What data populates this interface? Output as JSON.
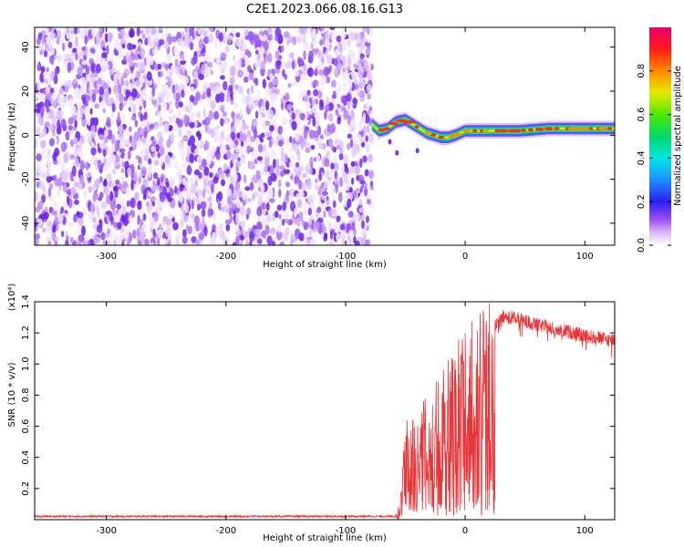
{
  "figure": {
    "title": "C2E1.2023.066.08.16.G13"
  },
  "chart_data": [
    {
      "type": "heatmap",
      "xlabel": "Height of straight line (km)",
      "ylabel": "Frequency (Hz)",
      "xlim": [
        -360,
        125
      ],
      "ylim": [
        -50,
        49
      ],
      "xticks": [
        -300,
        -200,
        -100,
        0,
        100
      ],
      "yticks": [
        -40,
        -20,
        0,
        20,
        40
      ],
      "noise_region_x": [
        -360,
        -78
      ],
      "signal_region_x": [
        -78,
        125
      ],
      "signal_center_freq_points": [
        {
          "x": -78,
          "y": 5
        },
        {
          "x": -72,
          "y": 2
        },
        {
          "x": -65,
          "y": 3
        },
        {
          "x": -58,
          "y": 6
        },
        {
          "x": -50,
          "y": 7
        },
        {
          "x": -44,
          "y": 5
        },
        {
          "x": -38,
          "y": 3
        },
        {
          "x": -32,
          "y": 1
        },
        {
          "x": -26,
          "y": 0
        },
        {
          "x": -20,
          "y": -1
        },
        {
          "x": -14,
          "y": -1
        },
        {
          "x": -8,
          "y": 0
        },
        {
          "x": 0,
          "y": 2
        },
        {
          "x": 10,
          "y": 2
        },
        {
          "x": 25,
          "y": 2
        },
        {
          "x": 45,
          "y": 2
        },
        {
          "x": 70,
          "y": 3
        },
        {
          "x": 90,
          "y": 3
        },
        {
          "x": 110,
          "y": 3
        },
        {
          "x": 125,
          "y": 3
        }
      ],
      "grid": false
    },
    {
      "type": "line",
      "xlabel": "Height of straight line (km)",
      "ylabel": "SNR (10 * v/v)",
      "y_multiplier": "(x10⁴)",
      "xlim": [
        -360,
        125
      ],
      "ylim": [
        0,
        1.4
      ],
      "xticks": [
        -300,
        -200,
        -100,
        0,
        100
      ],
      "yticks": [
        0.2,
        0.4,
        0.6,
        0.8,
        1.0,
        1.2,
        1.4
      ],
      "color": "#e8373a",
      "series_envelope": [
        {
          "x": -360,
          "y": 0.02
        },
        {
          "x": -60,
          "y": 0.02
        },
        {
          "x": -55,
          "y": 0.05
        },
        {
          "x": -52,
          "y": 0.3
        },
        {
          "x": -50,
          "y": 0.55
        },
        {
          "x": -45,
          "y": 0.5
        },
        {
          "x": -40,
          "y": 0.6
        },
        {
          "x": -35,
          "y": 0.65
        },
        {
          "x": -28,
          "y": 0.7
        },
        {
          "x": -20,
          "y": 0.75
        },
        {
          "x": -12,
          "y": 0.85
        },
        {
          "x": -5,
          "y": 0.95
        },
        {
          "x": 0,
          "y": 1.0
        },
        {
          "x": 8,
          "y": 1.05
        },
        {
          "x": 15,
          "y": 1.1
        },
        {
          "x": 22,
          "y": 1.2
        },
        {
          "x": 30,
          "y": 1.3
        },
        {
          "x": 40,
          "y": 1.3
        },
        {
          "x": 60,
          "y": 1.25
        },
        {
          "x": 80,
          "y": 1.22
        },
        {
          "x": 100,
          "y": 1.18
        },
        {
          "x": 125,
          "y": 1.15
        }
      ],
      "grid": false
    }
  ],
  "colorbar": {
    "label": "Normalized spectral amplitude",
    "ticks": [
      "0.0",
      "0.2",
      "0.4",
      "0.6",
      "0.8"
    ],
    "tick_values": [
      0.0,
      0.2,
      0.4,
      0.6,
      0.8
    ],
    "range": [
      0,
      1
    ]
  }
}
